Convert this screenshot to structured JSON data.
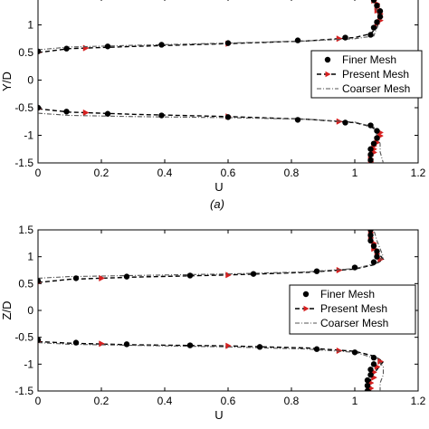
{
  "chart_data": [
    {
      "type": "line",
      "panel_label": "(a)",
      "xlabel": "U",
      "ylabel": "Y/D",
      "xlim": [
        0,
        1.2
      ],
      "ylim": [
        -1.5,
        1.5
      ],
      "x_ticks": [
        "0",
        "0.2",
        "0.4",
        "0.6",
        "0.8",
        "1",
        "1.2"
      ],
      "y_ticks": [
        "-1.5",
        "-1",
        "-0.5",
        "0",
        "0.5",
        "1",
        "1.5"
      ],
      "legend_position": "right",
      "series": [
        {
          "name": "Finer Mesh",
          "style": "dots",
          "color": "#000000",
          "points": [
            [
              0.0,
              0.52
            ],
            [
              0.09,
              0.57
            ],
            [
              0.22,
              0.61
            ],
            [
              0.39,
              0.64
            ],
            [
              0.6,
              0.67
            ],
            [
              0.82,
              0.72
            ],
            [
              0.97,
              0.77
            ],
            [
              1.05,
              0.82
            ],
            [
              1.06,
              0.95
            ],
            [
              1.07,
              1.05
            ],
            [
              1.08,
              1.15
            ],
            [
              1.08,
              1.25
            ],
            [
              1.07,
              1.35
            ],
            [
              1.06,
              1.45
            ],
            [
              0.0,
              -0.5
            ],
            [
              0.09,
              -0.57
            ],
            [
              0.22,
              -0.61
            ],
            [
              0.39,
              -0.64
            ],
            [
              0.6,
              -0.67
            ],
            [
              0.82,
              -0.72
            ],
            [
              0.97,
              -0.77
            ],
            [
              1.05,
              -0.82
            ],
            [
              1.07,
              -0.92
            ],
            [
              1.07,
              -1.05
            ],
            [
              1.06,
              -1.15
            ],
            [
              1.05,
              -1.25
            ],
            [
              1.05,
              -1.35
            ],
            [
              1.05,
              -1.45
            ]
          ]
        },
        {
          "name": "Present Mesh",
          "style": "dashed-triangles",
          "color": "#000000",
          "marker_color": "#d62020",
          "upper": [
            [
              0.0,
              0.5
            ],
            [
              0.1,
              0.57
            ],
            [
              0.3,
              0.61
            ],
            [
              0.6,
              0.66
            ],
            [
              0.85,
              0.71
            ],
            [
              1.0,
              0.77
            ],
            [
              1.05,
              0.84
            ],
            [
              1.07,
              0.95
            ],
            [
              1.08,
              1.1
            ],
            [
              1.07,
              1.25
            ],
            [
              1.06,
              1.4
            ],
            [
              1.06,
              1.5
            ]
          ],
          "lower": [
            [
              0.0,
              -0.52
            ],
            [
              0.1,
              -0.58
            ],
            [
              0.3,
              -0.62
            ],
            [
              0.6,
              -0.66
            ],
            [
              0.85,
              -0.71
            ],
            [
              1.0,
              -0.77
            ],
            [
              1.05,
              -0.84
            ],
            [
              1.08,
              -0.95
            ],
            [
              1.07,
              -1.1
            ],
            [
              1.06,
              -1.25
            ],
            [
              1.05,
              -1.4
            ],
            [
              1.05,
              -1.5
            ]
          ],
          "markers": [
            [
              0.0,
              0.5
            ],
            [
              0.15,
              0.58
            ],
            [
              0.6,
              0.66
            ],
            [
              0.95,
              0.75
            ],
            [
              1.07,
              1.02
            ],
            [
              1.08,
              1.08
            ],
            [
              1.08,
              1.14
            ],
            [
              1.08,
              1.2
            ],
            [
              1.07,
              1.26
            ],
            [
              1.07,
              1.32
            ],
            [
              1.07,
              1.38
            ],
            [
              1.06,
              1.44
            ],
            [
              0.0,
              -0.52
            ],
            [
              0.15,
              -0.59
            ],
            [
              0.6,
              -0.66
            ],
            [
              0.95,
              -0.75
            ],
            [
              1.08,
              -0.95
            ],
            [
              1.08,
              -1.01
            ],
            [
              1.07,
              -1.07
            ],
            [
              1.07,
              -1.13
            ],
            [
              1.06,
              -1.19
            ],
            [
              1.06,
              -1.25
            ],
            [
              1.06,
              -1.31
            ],
            [
              1.05,
              -1.37
            ],
            [
              1.05,
              -1.43
            ],
            [
              1.05,
              -1.48
            ]
          ]
        },
        {
          "name": "Coarser Mesh",
          "style": "dash-dot",
          "color": "#555555",
          "upper": [
            [
              0.0,
              0.55
            ],
            [
              0.1,
              0.6
            ],
            [
              0.3,
              0.63
            ],
            [
              0.6,
              0.67
            ],
            [
              0.85,
              0.71
            ],
            [
              1.0,
              0.75
            ],
            [
              1.06,
              0.8
            ],
            [
              1.07,
              0.95
            ],
            [
              1.08,
              1.1
            ],
            [
              1.07,
              1.25
            ],
            [
              1.06,
              1.4
            ],
            [
              1.05,
              1.5
            ]
          ],
          "lower": [
            [
              0.0,
              -0.6
            ],
            [
              0.1,
              -0.64
            ],
            [
              0.3,
              -0.66
            ],
            [
              0.6,
              -0.68
            ],
            [
              0.85,
              -0.71
            ],
            [
              1.0,
              -0.76
            ],
            [
              1.06,
              -0.85
            ],
            [
              1.07,
              -1.0
            ],
            [
              1.08,
              -1.15
            ],
            [
              1.08,
              -1.3
            ],
            [
              1.09,
              -1.5
            ]
          ]
        }
      ]
    },
    {
      "type": "line",
      "panel_label": "",
      "xlabel": "U",
      "ylabel": "Z/D",
      "xlim": [
        0,
        1.2
      ],
      "ylim": [
        -1.5,
        1.5
      ],
      "x_ticks": [
        "0",
        "0.2",
        "0.4",
        "0.6",
        "0.8",
        "1",
        "1.2"
      ],
      "y_ticks": [
        "-1.5",
        "-1",
        "-0.5",
        "0",
        "0.5",
        "1",
        "1.5"
      ],
      "legend_position": "right",
      "series": [
        {
          "name": "Finer Mesh",
          "style": "dots",
          "color": "#000000",
          "points": [
            [
              0.0,
              0.55
            ],
            [
              0.12,
              0.6
            ],
            [
              0.28,
              0.63
            ],
            [
              0.48,
              0.65
            ],
            [
              0.68,
              0.68
            ],
            [
              0.88,
              0.73
            ],
            [
              1.0,
              0.8
            ],
            [
              1.06,
              0.9
            ],
            [
              1.07,
              1.0
            ],
            [
              1.07,
              1.1
            ],
            [
              1.06,
              1.2
            ],
            [
              1.05,
              1.3
            ],
            [
              1.05,
              1.4
            ],
            [
              1.05,
              1.5
            ],
            [
              0.0,
              -0.55
            ],
            [
              0.12,
              -0.6
            ],
            [
              0.28,
              -0.63
            ],
            [
              0.48,
              -0.65
            ],
            [
              0.7,
              -0.68
            ],
            [
              0.88,
              -0.72
            ],
            [
              1.0,
              -0.78
            ],
            [
              1.06,
              -0.88
            ],
            [
              1.06,
              -1.0
            ],
            [
              1.05,
              -1.1
            ],
            [
              1.05,
              -1.2
            ],
            [
              1.04,
              -1.3
            ],
            [
              1.04,
              -1.4
            ],
            [
              1.04,
              -1.5
            ]
          ]
        },
        {
          "name": "Present Mesh",
          "style": "dashed-triangles",
          "color": "#000000",
          "marker_color": "#d62020",
          "upper": [
            [
              0.0,
              0.52
            ],
            [
              0.1,
              0.58
            ],
            [
              0.3,
              0.62
            ],
            [
              0.6,
              0.66
            ],
            [
              0.85,
              0.71
            ],
            [
              1.0,
              0.77
            ],
            [
              1.06,
              0.85
            ],
            [
              1.09,
              0.95
            ],
            [
              1.07,
              1.1
            ],
            [
              1.05,
              1.25
            ],
            [
              1.05,
              1.4
            ],
            [
              1.05,
              1.5
            ]
          ],
          "lower": [
            [
              0.0,
              -0.58
            ],
            [
              0.1,
              -0.61
            ],
            [
              0.3,
              -0.64
            ],
            [
              0.6,
              -0.66
            ],
            [
              0.85,
              -0.7
            ],
            [
              1.0,
              -0.76
            ],
            [
              1.06,
              -0.85
            ],
            [
              1.09,
              -0.95
            ],
            [
              1.07,
              -1.1
            ],
            [
              1.05,
              -1.25
            ],
            [
              1.05,
              -1.4
            ],
            [
              1.05,
              -1.5
            ]
          ],
          "markers": [
            [
              0.0,
              0.52
            ],
            [
              0.2,
              0.6
            ],
            [
              0.6,
              0.66
            ],
            [
              0.95,
              0.75
            ],
            [
              1.08,
              0.95
            ],
            [
              1.07,
              1.05
            ],
            [
              1.06,
              1.15
            ],
            [
              1.06,
              1.25
            ],
            [
              1.05,
              1.35
            ],
            [
              1.05,
              1.45
            ],
            [
              0.0,
              -0.58
            ],
            [
              0.2,
              -0.62
            ],
            [
              0.6,
              -0.66
            ],
            [
              0.95,
              -0.75
            ],
            [
              1.08,
              -0.95
            ],
            [
              1.07,
              -1.05
            ],
            [
              1.06,
              -1.15
            ],
            [
              1.06,
              -1.25
            ],
            [
              1.05,
              -1.35
            ],
            [
              1.05,
              -1.45
            ]
          ]
        },
        {
          "name": "Coarser Mesh",
          "style": "dash-dot",
          "color": "#555555",
          "upper": [
            [
              0.0,
              0.6
            ],
            [
              0.1,
              0.63
            ],
            [
              0.3,
              0.65
            ],
            [
              0.6,
              0.68
            ],
            [
              0.85,
              0.72
            ],
            [
              1.0,
              0.78
            ],
            [
              1.07,
              0.88
            ],
            [
              1.09,
              1.0
            ],
            [
              1.08,
              1.15
            ],
            [
              1.07,
              1.3
            ],
            [
              1.06,
              1.5
            ]
          ],
          "lower": [
            [
              0.0,
              -0.6
            ],
            [
              0.1,
              -0.63
            ],
            [
              0.3,
              -0.65
            ],
            [
              0.6,
              -0.68
            ],
            [
              0.85,
              -0.72
            ],
            [
              1.0,
              -0.78
            ],
            [
              1.07,
              -0.9
            ],
            [
              1.09,
              -1.05
            ],
            [
              1.09,
              -1.2
            ],
            [
              1.08,
              -1.35
            ],
            [
              1.08,
              -1.5
            ]
          ]
        }
      ]
    }
  ]
}
